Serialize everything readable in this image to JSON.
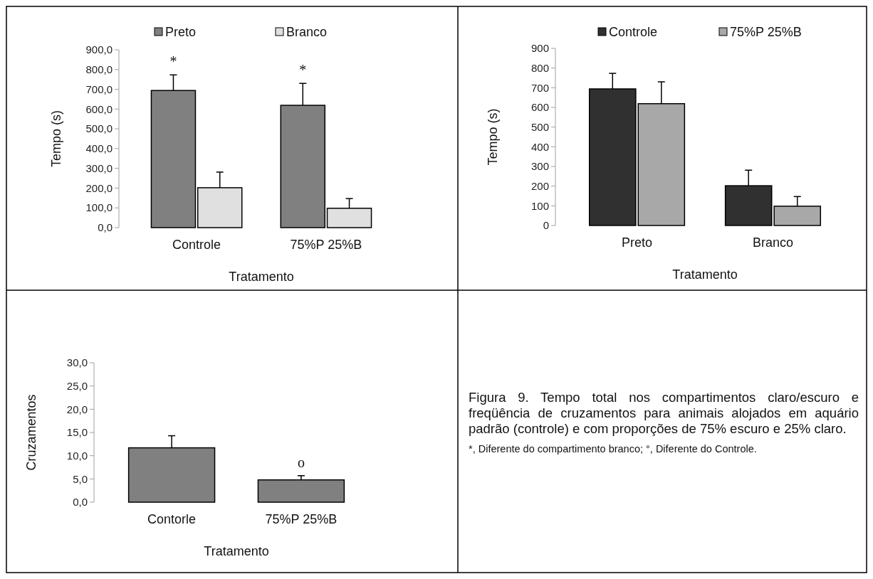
{
  "chart_data": [
    {
      "type": "bar",
      "categories": [
        "Controle",
        "75%P 25%B"
      ],
      "xlabel": "Tratamento",
      "ylabel": "Tempo (s)",
      "legend": "top",
      "series": [
        {
          "name": "Preto",
          "color": "#808080",
          "values": [
            694,
            619
          ],
          "errors": [
            [
              694,
              773
            ],
            [
              619,
              730
            ]
          ]
        },
        {
          "name": "Branco",
          "color": "#e0e0e0",
          "values": [
            202,
            98
          ],
          "errors": [
            [
              202,
              281
            ],
            [
              98,
              147
            ]
          ]
        }
      ],
      "ylim": [
        0,
        900
      ],
      "yticks": [
        {
          "value": 0,
          "label": "0,0"
        },
        {
          "value": 100,
          "label": "100,0"
        },
        {
          "value": 200,
          "label": "200,0"
        },
        {
          "value": 300,
          "label": "300,0"
        },
        {
          "value": 400,
          "label": "400,0"
        },
        {
          "value": 500,
          "label": "500,0"
        },
        {
          "value": 600,
          "label": "600,0"
        },
        {
          "value": 700,
          "label": "700,0"
        },
        {
          "value": 800,
          "label": "800,0"
        },
        {
          "value": 900,
          "label": "900,0"
        }
      ],
      "annotations": [
        "*",
        "*"
      ]
    },
    {
      "type": "bar",
      "categories": [
        "Preto",
        "Branco"
      ],
      "xlabel": "Tratamento",
      "ylabel": "Tempo (s)",
      "legend": "top",
      "series": [
        {
          "name": "Controle",
          "color": "#303030",
          "values": [
            694,
            202
          ],
          "errors": [
            [
              694,
              773
            ],
            [
              202,
              281
            ]
          ]
        },
        {
          "name": "75%P 25%B",
          "color": "#a8a8a8",
          "values": [
            619,
            98
          ],
          "errors": [
            [
              619,
              730
            ],
            [
              98,
              147
            ]
          ]
        }
      ],
      "ylim": [
        0,
        900
      ],
      "yticks": [
        0,
        100,
        200,
        300,
        400,
        500,
        600,
        700,
        800,
        900
      ]
    },
    {
      "type": "bar",
      "categories": [
        "Contorle",
        "75%P 25%B"
      ],
      "xlabel": "Tratamento",
      "ylabel": "Cruzamentos",
      "series": [
        {
          "color": "#808080",
          "values": [
            11.7,
            4.8
          ],
          "errors": [
            [
              11.7,
              14.3
            ],
            [
              4.8,
              5.7
            ]
          ]
        }
      ],
      "ylim": [
        0,
        30
      ],
      "yticks": [
        {
          "value": 0,
          "label": "0,0"
        },
        {
          "value": 5,
          "label": "5,0"
        },
        {
          "value": 10,
          "label": "10,0"
        },
        {
          "value": 15,
          "label": "15,0"
        },
        {
          "value": 20,
          "label": "20,0"
        },
        {
          "value": 25,
          "label": "25,0"
        },
        {
          "value": 30,
          "label": "30,0"
        }
      ],
      "annotations": [
        "o"
      ]
    },
    {
      "type": "other",
      "title": "Figura 9. Tempo total nos compartimentos claro/escuro e freqüência de cruzamentos para animais alojados em aquário padrão (controle) e com proporções de 75% escuro e 25% claro.",
      "annotations": [
        "*, Diferente do compartimento branco; °, Diferente do Controle."
      ]
    }
  ]
}
